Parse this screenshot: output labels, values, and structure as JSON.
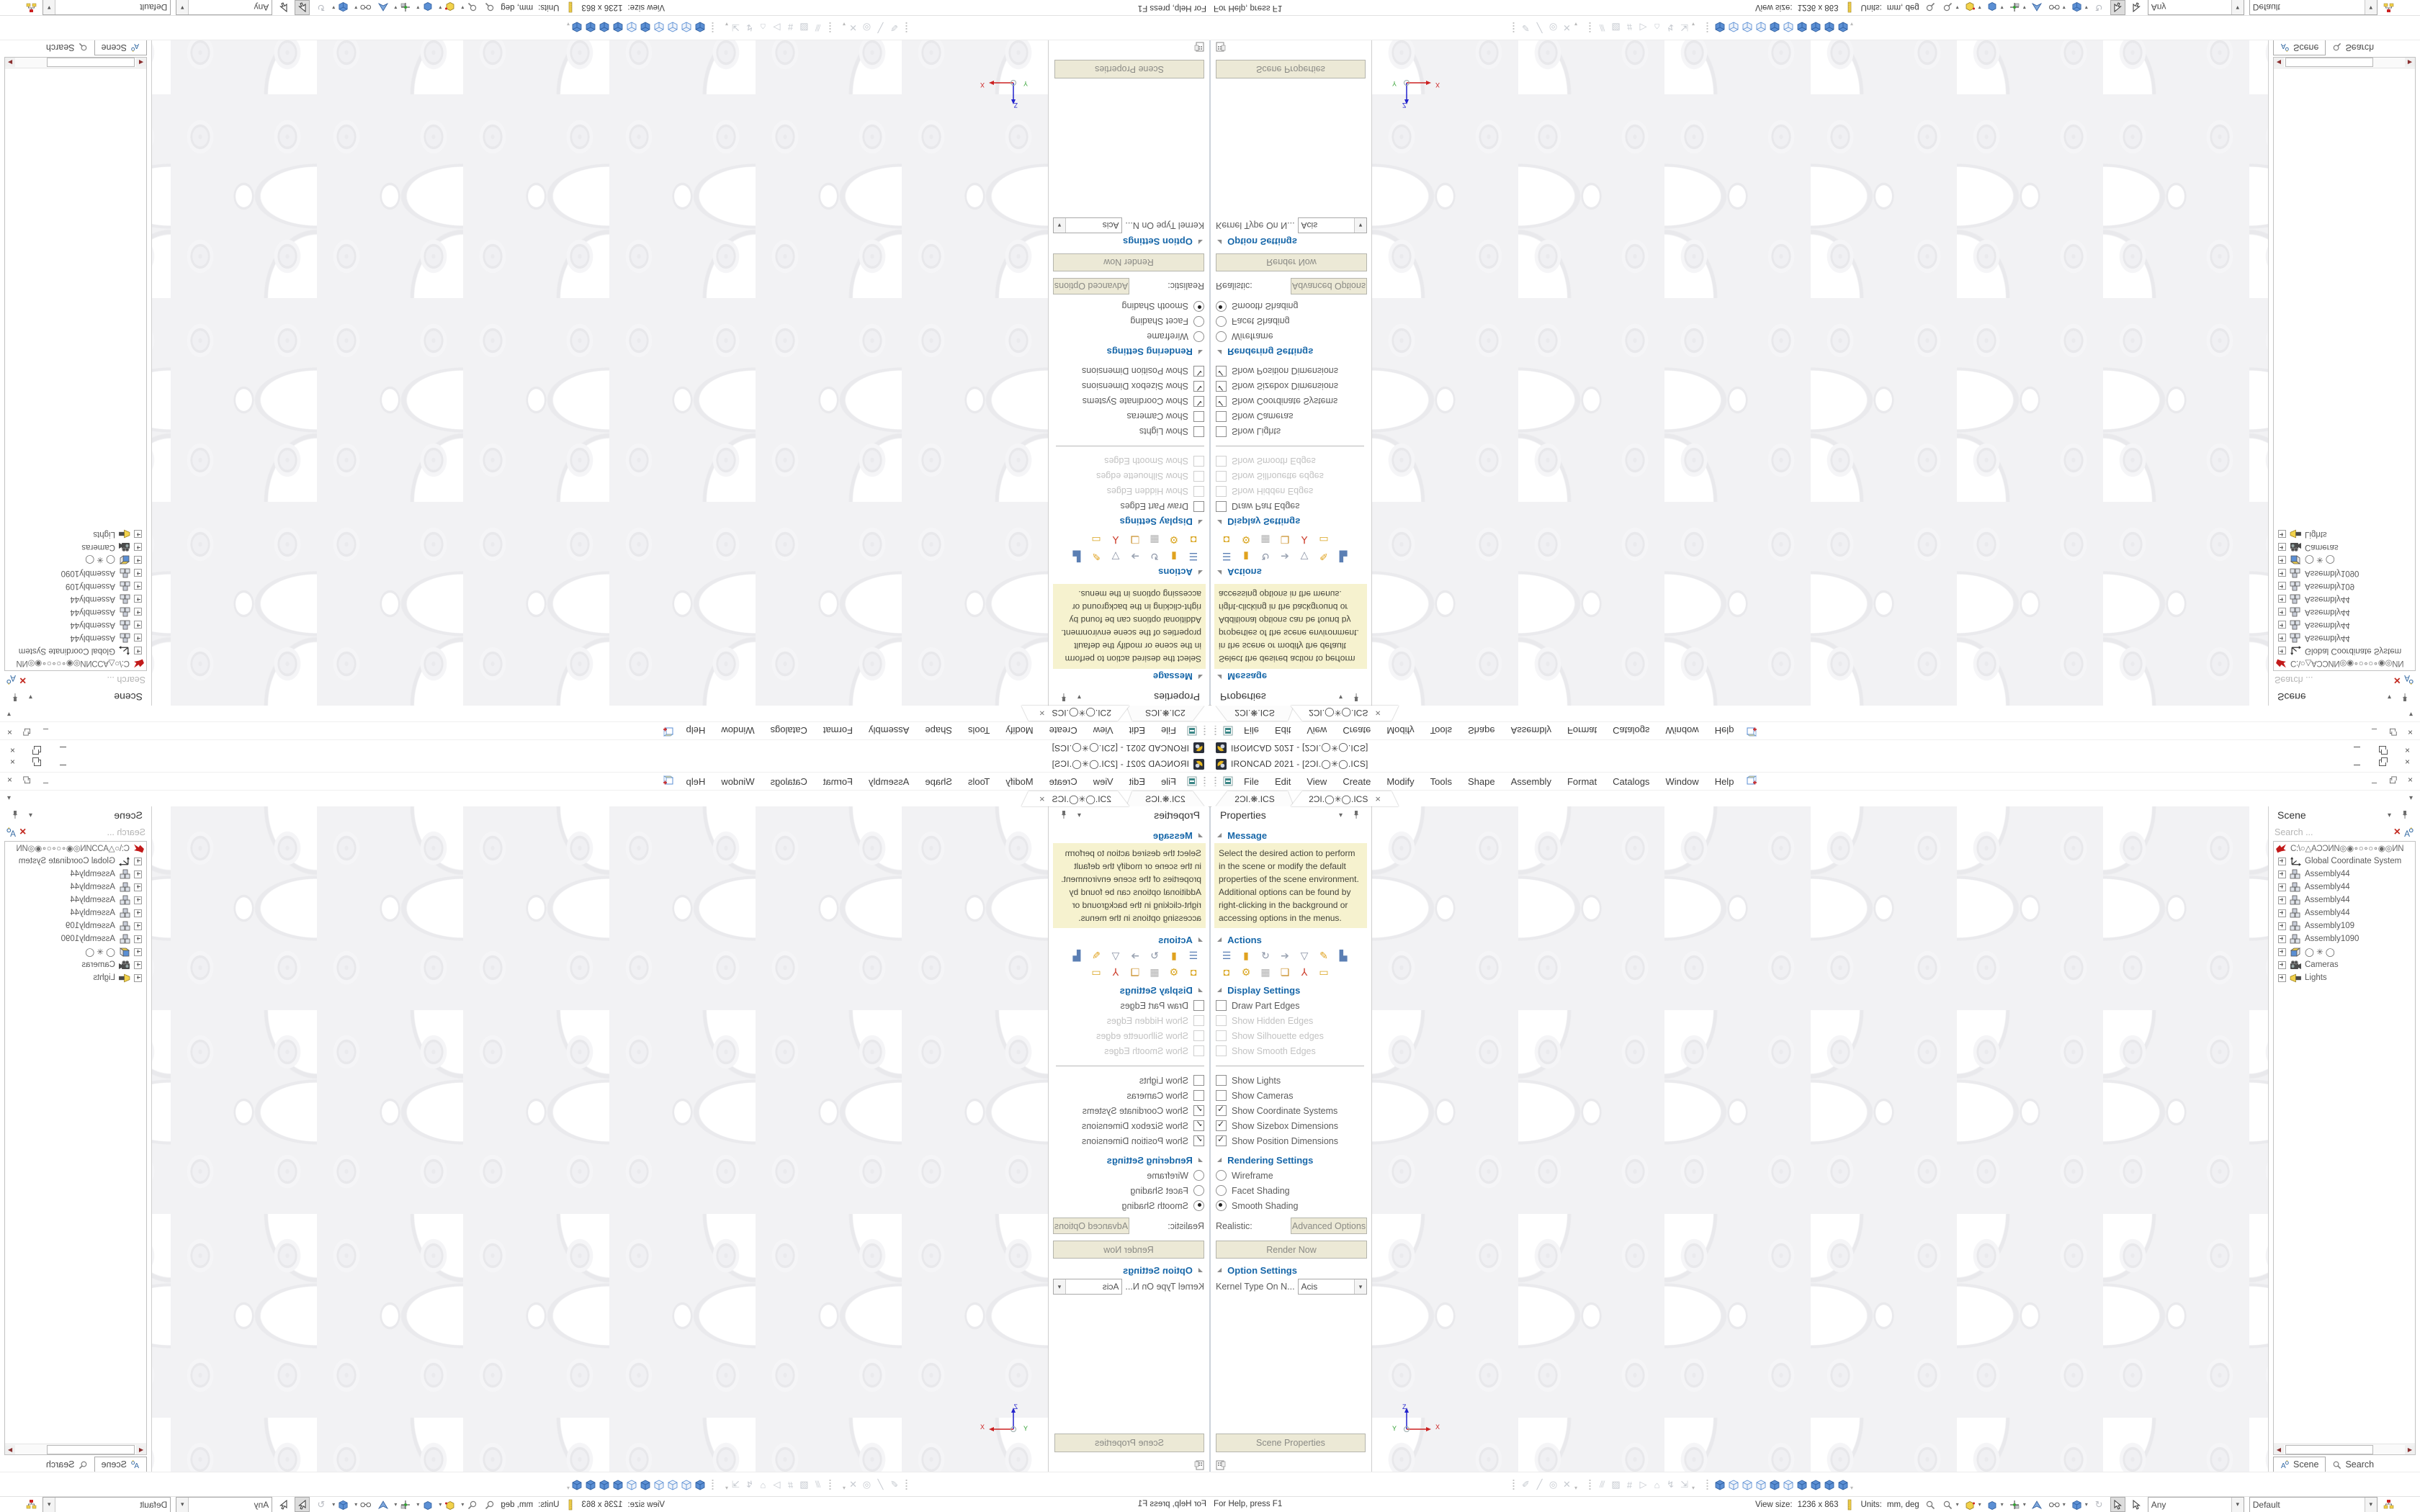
{
  "window": {
    "title": "IRONCAD 2021 - [2ƆI.◯✳◯.ICS]",
    "minimize_glyph": "–",
    "close_glyph": "×"
  },
  "menu": {
    "items": [
      "File",
      "Edit",
      "View",
      "Create",
      "Modify",
      "Tools",
      "Shape",
      "Assembly",
      "Format",
      "Catalogs",
      "Window",
      "Help"
    ]
  },
  "tabs": {
    "inactive_label": "2ƆI.❋.ICS",
    "active_label": "2ƆI.◯✳◯.ICS",
    "close_glyph": "×",
    "overflow_glyph": "▾"
  },
  "properties_panel": {
    "title": "Properties",
    "caret_glyph": "▾",
    "message": {
      "label": "Message",
      "text": "Select the desired action to perform in the scene or modify the default properties of the scene environment. Additional options can be found by right-clicking in the background or accessing options in the menus."
    },
    "actions": {
      "label": "Actions"
    },
    "display": {
      "label": "Display Settings",
      "items": [
        {
          "label": "Draw Part Edges",
          "checked": false,
          "enabled": true
        },
        {
          "label": "Show Hidden Edges",
          "checked": false,
          "enabled": false
        },
        {
          "label": "Show Silhouette edges",
          "checked": false,
          "enabled": false
        },
        {
          "label": "Show Smooth Edges",
          "checked": false,
          "enabled": false
        },
        {
          "label": "Show Lights",
          "checked": false,
          "enabled": true
        },
        {
          "label": "Show Cameras",
          "checked": false,
          "enabled": true
        },
        {
          "label": "Show Coordinate Systems",
          "checked": true,
          "enabled": true
        },
        {
          "label": "Show Sizebox Dimensions",
          "checked": true,
          "enabled": true
        },
        {
          "label": "Show Position Dimensions",
          "checked": true,
          "enabled": true
        }
      ]
    },
    "rendering": {
      "label": "Rendering Settings",
      "radios": [
        {
          "label": "Wireframe",
          "selected": false
        },
        {
          "label": "Facet Shading",
          "selected": false
        },
        {
          "label": "Smooth Shading",
          "selected": true
        }
      ],
      "realistic_label": "Realistic:",
      "advanced_button": "Advanced Options",
      "render_button": "Render Now"
    },
    "options": {
      "label": "Option Settings",
      "kernel_label": "Kernel Type On N...",
      "kernel_value": "Acis"
    },
    "footer_button": "Scene Properties"
  },
  "scene_panel": {
    "title": "Scene",
    "caret_glyph": "▾",
    "search_placeholder": "Search ...",
    "root_path": "C:\\○△AƆƆИN◎◉∘○∘○∘◉◎ИN",
    "items": [
      {
        "label": "Global Coordinate System"
      },
      {
        "label": "Assembly44"
      },
      {
        "label": "Assembly44"
      },
      {
        "label": "Assembly44"
      },
      {
        "label": "Assembly44"
      },
      {
        "label": "Assembly109"
      },
      {
        "label": "Assembly1090"
      },
      {
        "label": "◯ ✳ ◯"
      },
      {
        "label": "Cameras"
      },
      {
        "label": "Lights"
      }
    ],
    "footer_tabs": [
      "Scene",
      "Search"
    ]
  },
  "viewport": {
    "axis_x": "X",
    "axis_y": "Y",
    "axis_z": "Z"
  },
  "status_bar": {
    "help": "For Help, press F1",
    "view_size_label": "View size:",
    "view_size_value": "1236 x 863",
    "units_label": "Units:",
    "units_value": "mm, deg",
    "selection_filter": "Any",
    "render_config": "Default"
  }
}
